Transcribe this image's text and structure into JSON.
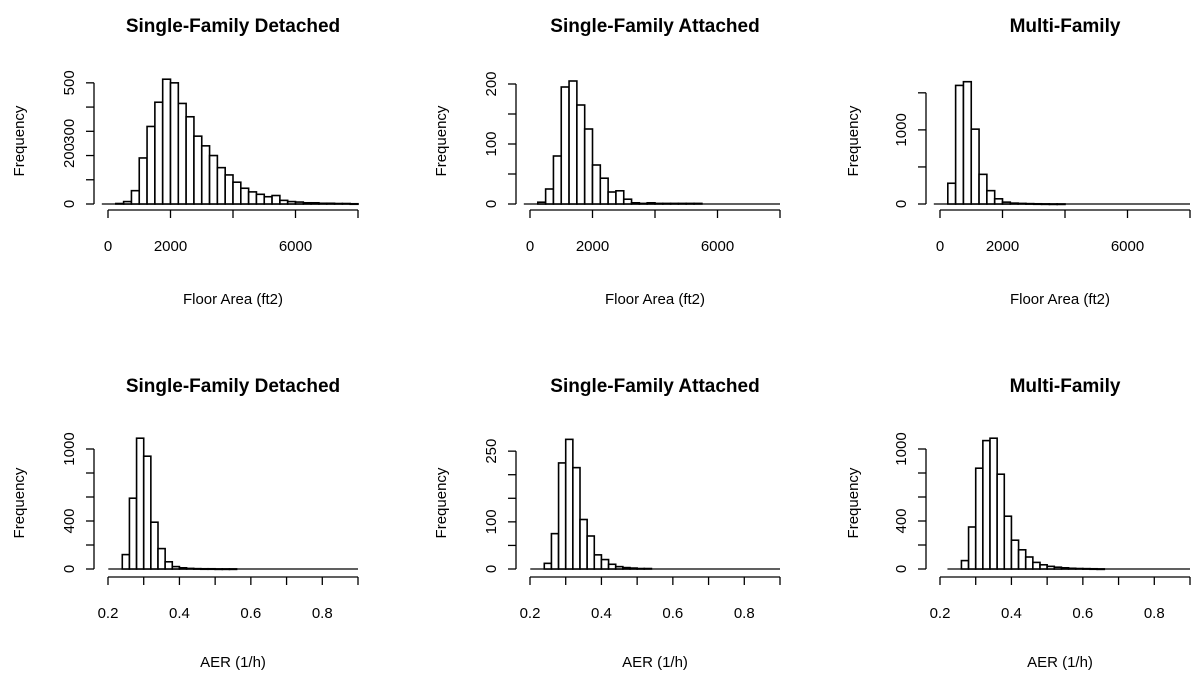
{
  "chart_data": [
    {
      "type": "bar",
      "title": "Single-Family Detached",
      "xlabel": "Floor Area (ft2)",
      "ylabel": "Frequency",
      "xlim": [
        0,
        8000
      ],
      "ylim": [
        0,
        520
      ],
      "xticks": [
        0,
        2000,
        6000
      ],
      "xtick_marks": [
        0,
        2000,
        4000,
        6000,
        8000
      ],
      "yticks": [
        0,
        200,
        300,
        500
      ],
      "ytick_marks": [
        0,
        100,
        200,
        300,
        400,
        500
      ],
      "bin_width": 250,
      "bins_start": 250,
      "values": [
        2,
        10,
        55,
        190,
        320,
        420,
        515,
        500,
        415,
        360,
        280,
        240,
        200,
        150,
        120,
        90,
        65,
        50,
        40,
        30,
        35,
        15,
        10,
        8,
        5,
        5,
        3,
        3,
        2,
        2,
        1
      ]
    },
    {
      "type": "bar",
      "title": "Single-Family Attached",
      "xlabel": "Floor Area (ft2)",
      "ylabel": "Frequency",
      "xlim": [
        0,
        8000
      ],
      "ylim": [
        0,
        210
      ],
      "xticks": [
        0,
        2000,
        6000
      ],
      "xtick_marks": [
        0,
        2000,
        4000,
        6000,
        8000
      ],
      "yticks": [
        0,
        100,
        200
      ],
      "ytick_marks": [
        0,
        50,
        100,
        150,
        200
      ],
      "bin_width": 250,
      "bins_start": 250,
      "values": [
        3,
        25,
        80,
        195,
        205,
        165,
        125,
        65,
        43,
        20,
        22,
        8,
        2,
        1,
        2,
        1,
        1,
        1,
        1,
        1,
        1
      ]
    },
    {
      "type": "bar",
      "title": "Multi-Family",
      "xlabel": "Floor Area (ft2)",
      "ylabel": "Frequency",
      "xlim": [
        0,
        8000
      ],
      "ylim": [
        0,
        1700
      ],
      "xticks": [
        0,
        2000,
        6000
      ],
      "xtick_marks": [
        0,
        2000,
        4000,
        6000,
        8000
      ],
      "yticks": [
        0,
        1000
      ],
      "ytick_marks": [
        0,
        500,
        1000,
        1500
      ],
      "bin_width": 250,
      "bins_start": 250,
      "values": [
        280,
        1600,
        1650,
        1010,
        400,
        180,
        70,
        25,
        12,
        8,
        5,
        3,
        2,
        1,
        1
      ]
    },
    {
      "type": "bar",
      "title": "Single-Family Detached",
      "xlabel": "AER (1/h)",
      "ylabel": "Frequency",
      "xlim": [
        0.2,
        0.9
      ],
      "ylim": [
        0,
        1100
      ],
      "xticks": [
        0.2,
        0.4,
        0.6,
        0.8
      ],
      "xtick_marks": [
        0.2,
        0.3,
        0.4,
        0.5,
        0.6,
        0.7,
        0.8,
        0.9
      ],
      "yticks": [
        0,
        400,
        1000
      ],
      "ytick_marks": [
        0,
        200,
        400,
        600,
        800,
        1000
      ],
      "bin_width": 0.02,
      "bins_start": 0.24,
      "values": [
        120,
        590,
        1090,
        940,
        390,
        170,
        60,
        20,
        10,
        5,
        3,
        2,
        2,
        1,
        1,
        1
      ]
    },
    {
      "type": "bar",
      "title": "Single-Family Attached",
      "xlabel": "AER (1/h)",
      "ylabel": "Frequency",
      "xlim": [
        0.2,
        0.9
      ],
      "ylim": [
        0,
        280
      ],
      "xticks": [
        0.2,
        0.4,
        0.6,
        0.8
      ],
      "xtick_marks": [
        0.2,
        0.3,
        0.4,
        0.5,
        0.6,
        0.7,
        0.8,
        0.9
      ],
      "yticks": [
        0,
        100,
        250
      ],
      "ytick_marks": [
        0,
        50,
        100,
        150,
        200,
        250
      ],
      "bin_width": 0.02,
      "bins_start": 0.24,
      "values": [
        12,
        75,
        225,
        275,
        215,
        105,
        70,
        30,
        20,
        10,
        5,
        3,
        2,
        1,
        1
      ]
    },
    {
      "type": "bar",
      "title": "Multi-Family",
      "xlabel": "AER (1/h)",
      "ylabel": "Frequency",
      "xlim": [
        0.2,
        0.9
      ],
      "ylim": [
        0,
        1100
      ],
      "xticks": [
        0.2,
        0.4,
        0.6,
        0.8
      ],
      "xtick_marks": [
        0.2,
        0.3,
        0.4,
        0.5,
        0.6,
        0.7,
        0.8,
        0.9
      ],
      "yticks": [
        0,
        400,
        1000
      ],
      "ytick_marks": [
        0,
        200,
        400,
        600,
        800,
        1000
      ],
      "bin_width": 0.02,
      "bins_start": 0.26,
      "values": [
        70,
        350,
        840,
        1070,
        1090,
        790,
        440,
        240,
        160,
        100,
        55,
        35,
        22,
        15,
        10,
        6,
        4,
        3,
        2,
        1
      ]
    }
  ]
}
